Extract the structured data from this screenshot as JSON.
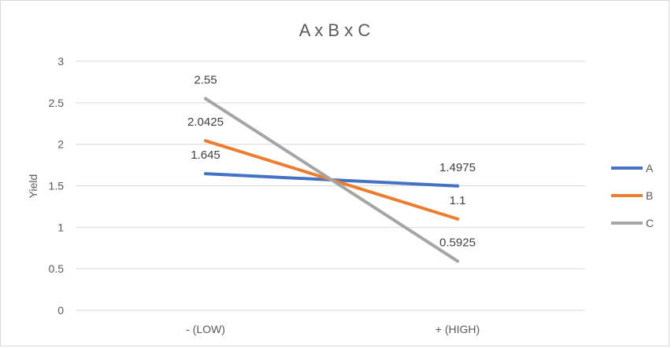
{
  "chart_data": {
    "type": "line",
    "title": "A x B x C",
    "xlabel": "",
    "ylabel": "Yield",
    "categories": [
      "- (LOW)",
      "+ (HIGH)"
    ],
    "ylim": [
      0,
      3
    ],
    "yticks": [
      0,
      0.5,
      1,
      1.5,
      2,
      2.5,
      3
    ],
    "grid": true,
    "legend": "right",
    "series": [
      {
        "name": "A",
        "values": [
          1.645,
          1.4975
        ],
        "labels": [
          "1.645",
          "1.4975"
        ],
        "color": "#4472C4"
      },
      {
        "name": "B",
        "values": [
          2.0425,
          1.1
        ],
        "labels": [
          "2.0425",
          "1.1"
        ],
        "color": "#ED7D31"
      },
      {
        "name": "C",
        "values": [
          2.55,
          0.5925
        ],
        "labels": [
          "2.55",
          "0.5925"
        ],
        "color": "#A5A5A5"
      }
    ]
  }
}
